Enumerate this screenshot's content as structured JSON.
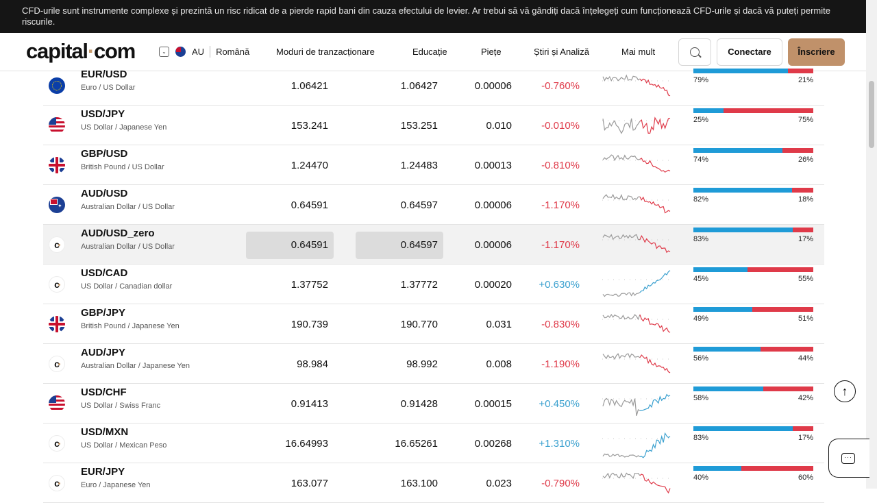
{
  "banner": {
    "text": "CFD-urile sunt instrumente complexe și prezintă un risc ridicat de a pierde rapid bani din cauza efectului de levier. Ar trebui să vă gândiți dacă înțelegeți cum funcționează CFD-urile și dacă vă puteți permite riscurile."
  },
  "header": {
    "logo_text_1": "capital",
    "logo_dot": "·",
    "logo_text_2": "com",
    "country_code": "AU",
    "language": "Română",
    "nav": [
      {
        "label": "Moduri de tranzacționare"
      },
      {
        "label": "Educație"
      },
      {
        "label": "Piețe"
      },
      {
        "label": "Știri și Analiză"
      },
      {
        "label": "Mai mult"
      }
    ],
    "login_label": "Conectare",
    "signup_label": "Înscriere"
  },
  "colors": {
    "accent": "#c0916a",
    "negative": "#df3a49",
    "positive": "#3aa0cf",
    "buyers": "#1f9bd7",
    "sellers": "#df3a49"
  },
  "markets": [
    {
      "symbol": "EUR/USD",
      "name": "Euro / US Dollar",
      "flag": "eu-flag-icon",
      "sell": "1.06421",
      "buy": "1.06427",
      "spread": "0.00006",
      "change": "-0.760%",
      "dir": "neg",
      "buy_pct": 79,
      "buy_label": "79%",
      "sell_label": "21%",
      "trend": "down"
    },
    {
      "symbol": "USD/JPY",
      "name": "US Dollar / Japanese Yen",
      "flag": "us-flag-icon",
      "sell": "153.241",
      "buy": "153.251",
      "spread": "0.010",
      "change": "-0.010%",
      "dir": "neg",
      "buy_pct": 25,
      "buy_label": "25%",
      "sell_label": "75%",
      "trend": "volatile"
    },
    {
      "symbol": "GBP/USD",
      "name": "British Pound / US Dollar",
      "flag": "gb-flag-icon",
      "sell": "1.24470",
      "buy": "1.24483",
      "spread": "0.00013",
      "change": "-0.810%",
      "dir": "neg",
      "buy_pct": 74,
      "buy_label": "74%",
      "sell_label": "26%",
      "trend": "down"
    },
    {
      "symbol": "AUD/USD",
      "name": "Australian Dollar / US Dollar",
      "flag": "au-flag-icon",
      "sell": "0.64591",
      "buy": "0.64597",
      "spread": "0.00006",
      "change": "-1.170%",
      "dir": "neg",
      "buy_pct": 82,
      "buy_label": "82%",
      "sell_label": "18%",
      "trend": "down"
    },
    {
      "symbol": "AUD/USD_zero",
      "name": "Australian Dollar / US Dollar",
      "flag": "capital-logo-icon",
      "sell": "0.64591",
      "buy": "0.64597",
      "spread": "0.00006",
      "change": "-1.170%",
      "dir": "neg",
      "buy_pct": 83,
      "buy_label": "83%",
      "sell_label": "17%",
      "trend": "down",
      "highlighted": true
    },
    {
      "symbol": "USD/CAD",
      "name": "US Dollar / Canadian dollar",
      "flag": "capital-logo-icon",
      "sell": "1.37752",
      "buy": "1.37772",
      "spread": "0.00020",
      "change": "+0.630%",
      "dir": "pos",
      "buy_pct": 45,
      "buy_label": "45%",
      "sell_label": "55%",
      "trend": "up"
    },
    {
      "symbol": "GBP/JPY",
      "name": "British Pound / Japanese Yen",
      "flag": "gb-flag-icon",
      "sell": "190.739",
      "buy": "190.770",
      "spread": "0.031",
      "change": "-0.830%",
      "dir": "neg",
      "buy_pct": 49,
      "buy_label": "49%",
      "sell_label": "51%",
      "trend": "down"
    },
    {
      "symbol": "AUD/JPY",
      "name": "Australian Dollar / Japanese Yen",
      "flag": "capital-logo-icon",
      "sell": "98.984",
      "buy": "98.992",
      "spread": "0.008",
      "change": "-1.190%",
      "dir": "neg",
      "buy_pct": 56,
      "buy_label": "56%",
      "sell_label": "44%",
      "trend": "down"
    },
    {
      "symbol": "USD/CHF",
      "name": "US Dollar / Swiss Franc",
      "flag": "us-flag-icon",
      "sell": "0.91413",
      "buy": "0.91428",
      "spread": "0.00015",
      "change": "+0.450%",
      "dir": "pos",
      "buy_pct": 58,
      "buy_label": "58%",
      "sell_label": "42%",
      "trend": "up-volatile"
    },
    {
      "symbol": "USD/MXN",
      "name": "US Dollar / Mexican Peso",
      "flag": "capital-logo-icon",
      "sell": "16.64993",
      "buy": "16.65261",
      "spread": "0.00268",
      "change": "+1.310%",
      "dir": "pos",
      "buy_pct": 83,
      "buy_label": "83%",
      "sell_label": "17%",
      "trend": "spike-up"
    },
    {
      "symbol": "EUR/JPY",
      "name": "Euro / Japanese Yen",
      "flag": "capital-logo-icon",
      "sell": "163.077",
      "buy": "163.100",
      "spread": "0.023",
      "change": "-0.790%",
      "dir": "neg",
      "buy_pct": 40,
      "buy_label": "40%",
      "sell_label": "60%",
      "trend": "down"
    }
  ],
  "widgets": {
    "scroll_top_icon": "arrow-up-icon",
    "chat_icon": "chat-icon"
  }
}
